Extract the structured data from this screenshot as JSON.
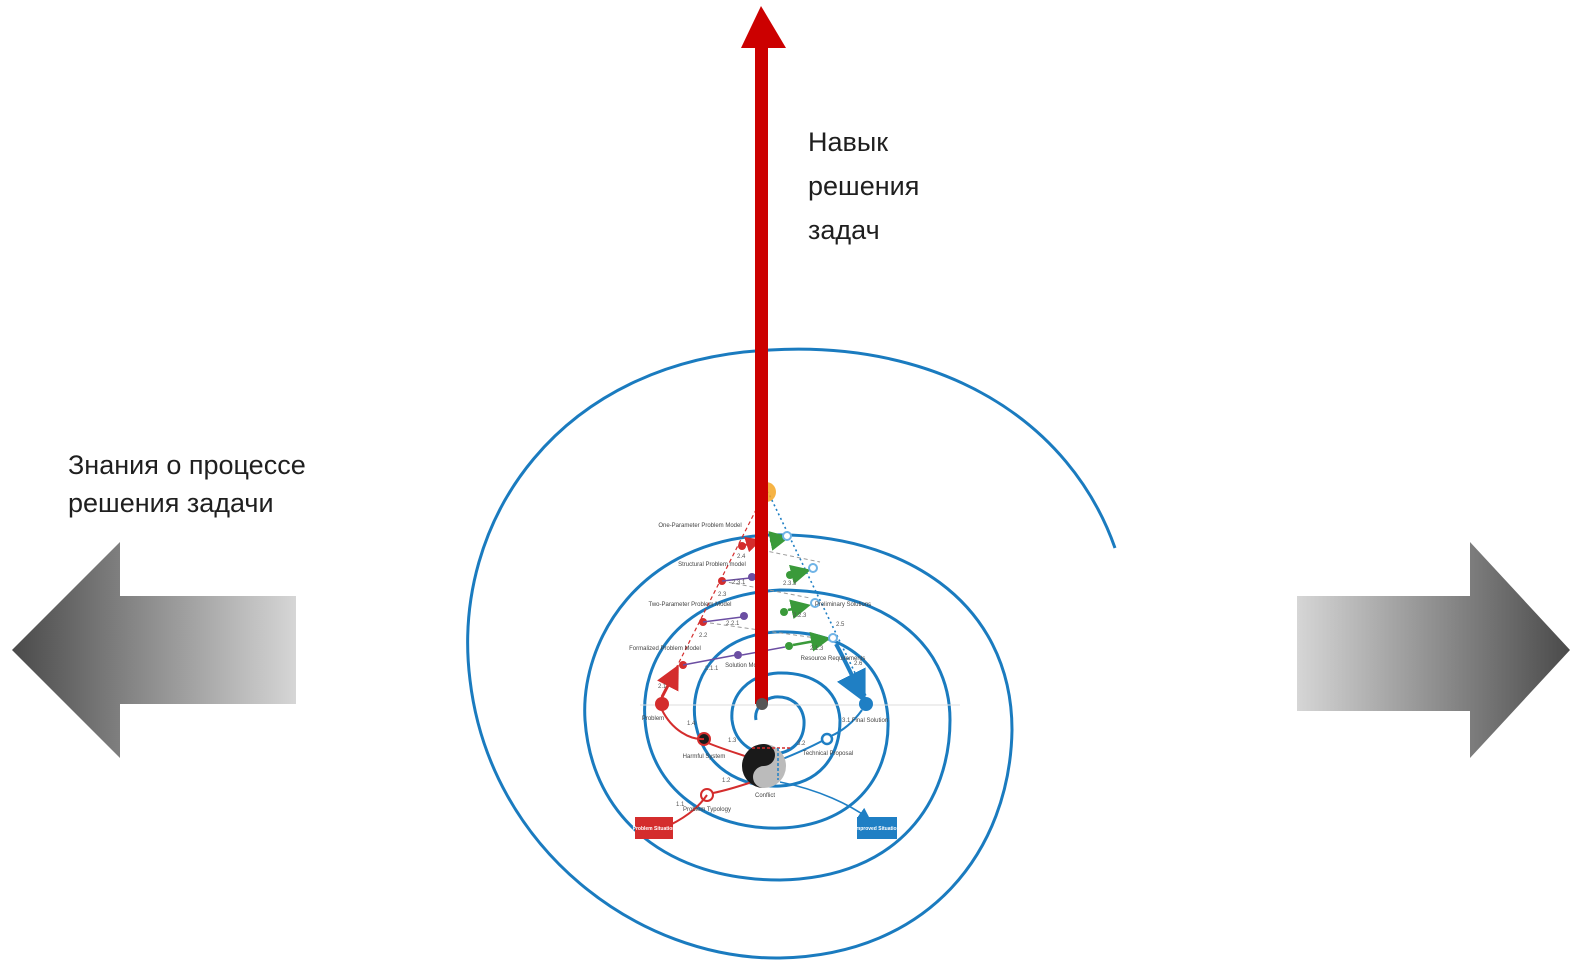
{
  "labels": {
    "skill_line1": "Навык",
    "skill_line2": "решения",
    "skill_line3": "задач",
    "knowledge_line1": "Знания о процессе",
    "knowledge_line2": "решения задачи"
  },
  "colors": {
    "spiral": "#1a7bbf",
    "axis_arrow": "#cc0000",
    "problem_red": "#d42d2d",
    "solution_blue": "#1f7fc4",
    "model_purple": "#6b4ea2",
    "solution_green": "#3a9a3a",
    "apex_orange": "#f5a623"
  },
  "process_diagram": {
    "nodes": {
      "one_param": "One-Parameter Problem Model",
      "structural": "Structural Problem model",
      "two_param": "Two-Parameter Problem Model",
      "formalized": "Formalized Problem Model",
      "problem": "Problem",
      "harmful": "Harmful System",
      "conflict": "Conflict",
      "problem_typology": "Problem Typology",
      "problem_situation": "Problem Situation",
      "improved_situation": "Improved Situation",
      "solution_model": "Solution Model",
      "resource_req": "Resource Requirements",
      "preliminary": "Preliminary Solutions",
      "final_solution": "Final Solution",
      "technical_proposal": "Technical Proposal"
    },
    "steps": {
      "s24": "2.4",
      "s23": "2.3",
      "s22": "2.2",
      "s21": "2.1",
      "s231": "2.3.1",
      "s233": "2.3.3",
      "s221": "2.2.1",
      "s223": "2.2.3",
      "s211": "2.1.1",
      "s213": "2.1.3",
      "s25": "2.5",
      "s26": "2.6",
      "s14": "1.4",
      "s13": "1.3",
      "s12": "1.2",
      "s11": "1.1",
      "s31": "3.1",
      "s32": "3.2"
    }
  }
}
